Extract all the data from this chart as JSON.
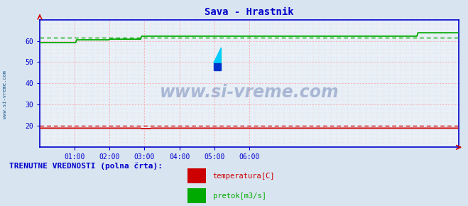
{
  "title": "Sava - Hrastnik",
  "title_color": "#0000cc",
  "title_fontsize": 10,
  "bg_color": "#d8e4f0",
  "plot_bg_color": "#e8f0f8",
  "axis_color": "#0000cc",
  "watermark_text": "www.si-vreme.com",
  "watermark_color": "#1a3a8a",
  "watermark_alpha": 0.3,
  "grid_color_major": "#ff9999",
  "grid_color_minor": "#e8cccc",
  "xlim": [
    0,
    432
  ],
  "ylim": [
    10,
    70
  ],
  "yticks": [
    20,
    30,
    40,
    50,
    60
  ],
  "xtick_labels": [
    "01:00",
    "02:00",
    "03:00",
    "04:00",
    "05:00",
    "06:00"
  ],
  "xtick_positions": [
    36,
    72,
    108,
    144,
    180,
    216
  ],
  "temp_color": "#cc0000",
  "flow_color": "#00aa00",
  "legend_label_temp": "temperatura[C]",
  "legend_label_flow": "pretok[m3/s]",
  "bottom_label": "TRENUTNE VREDNOSTI (polna črta):",
  "bottom_label_color": "#0000cc",
  "sidebar_text": "www.si-vreme.com",
  "sidebar_color": "#1a5a8a",
  "n_points": 432
}
